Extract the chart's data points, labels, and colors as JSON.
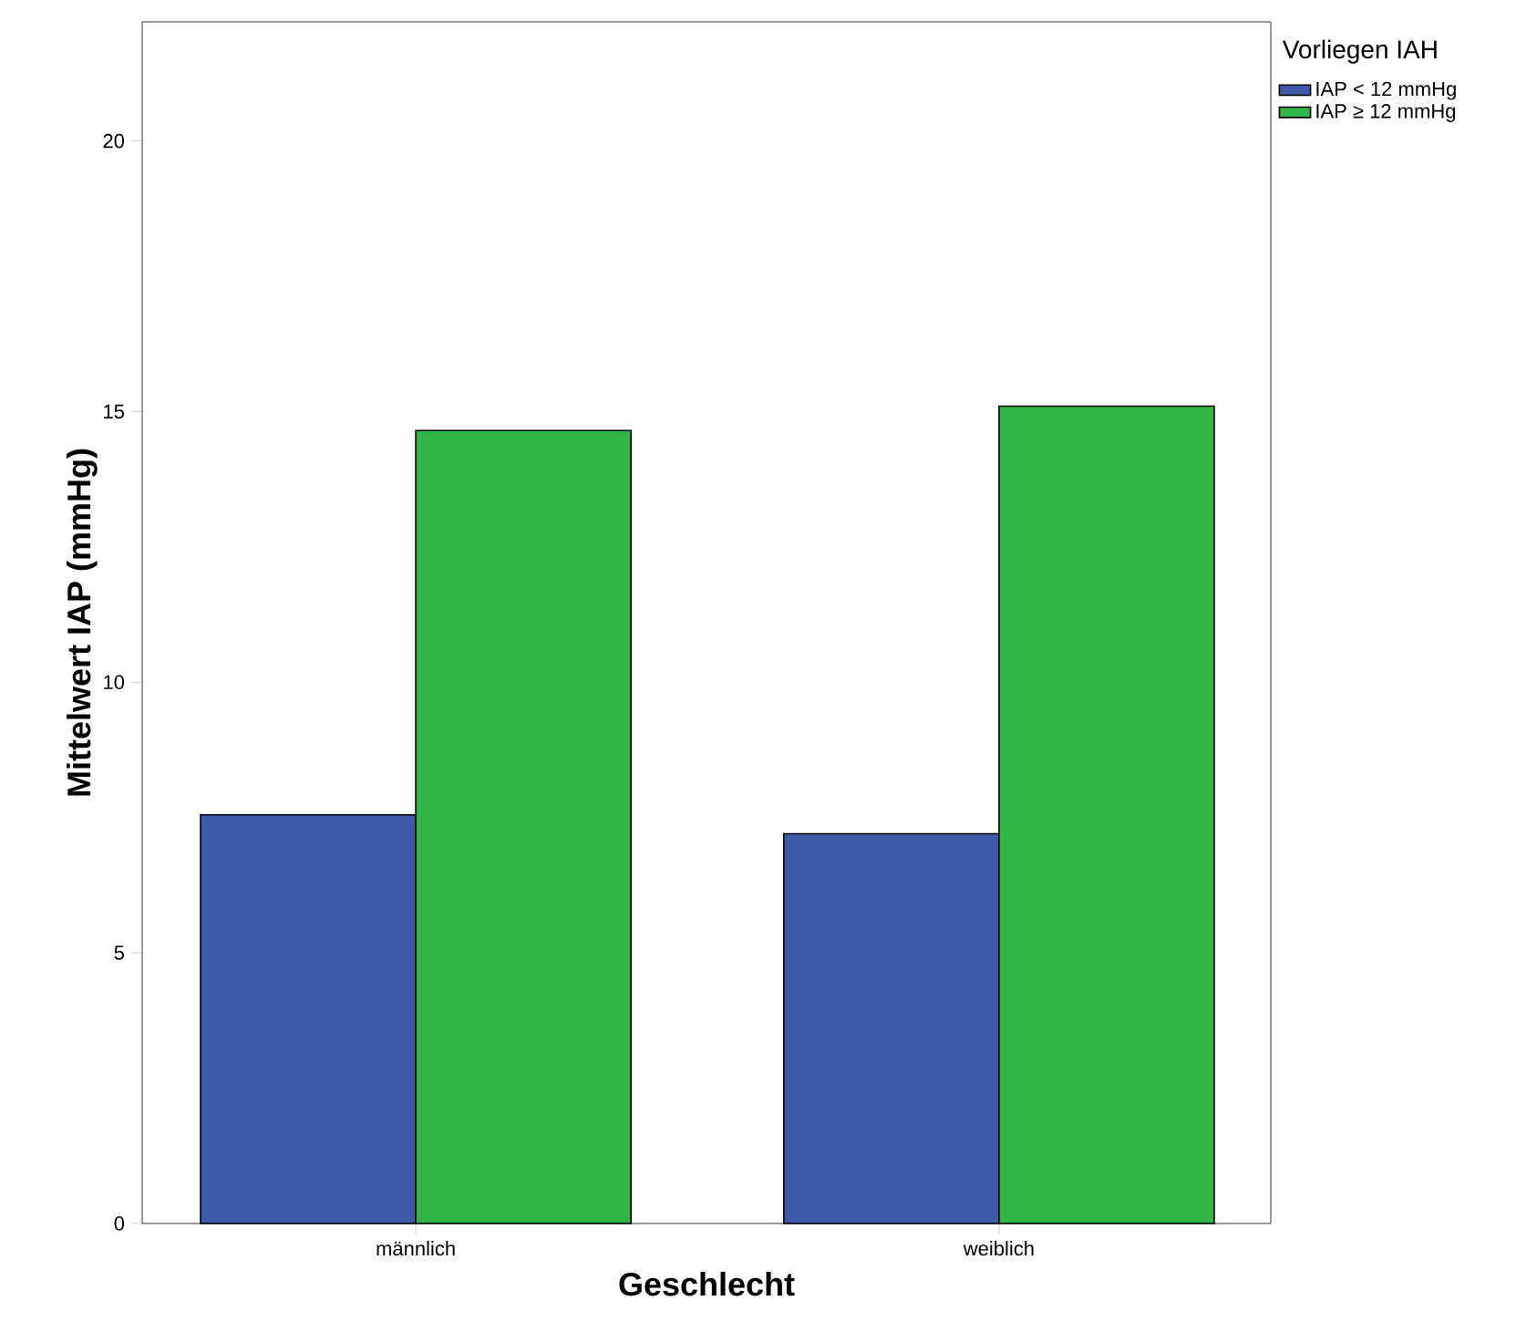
{
  "chart_data": {
    "type": "bar",
    "xlabel": "Geschlecht",
    "ylabel": "Mittelwert IAP (mmHg)",
    "legend_title": "Vorliegen IAH",
    "categories": [
      "männlich",
      "weiblich"
    ],
    "series": [
      {
        "name": "IAP < 12 mmHg",
        "color": "#3e58aa",
        "values": [
          7.55,
          7.2
        ]
      },
      {
        "name": "IAP ≥ 12 mmHg",
        "color": "#2fb647",
        "values": [
          14.65,
          15.1
        ]
      }
    ],
    "ylim": [
      0,
      22.2
    ],
    "yticks": [
      0,
      5,
      10,
      15,
      20
    ],
    "grid": false,
    "legend": "right"
  }
}
